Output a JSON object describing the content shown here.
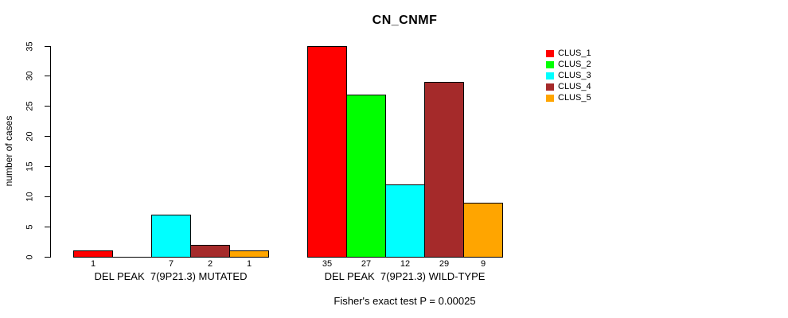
{
  "chart_data": {
    "type": "bar",
    "title": "CN_CNMF",
    "ylabel": "number of cases",
    "xlabel": "",
    "ylim": [
      0,
      35
    ],
    "yticks": [
      0,
      5,
      10,
      15,
      20,
      25,
      30,
      35
    ],
    "grid": false,
    "legend_position": "right",
    "groups": [
      {
        "label": "DEL PEAK  7(9P21.3) MUTATED",
        "values": [
          1,
          0,
          7,
          2,
          1
        ],
        "bar_labels": [
          "1",
          "",
          "7",
          "2",
          "1"
        ]
      },
      {
        "label": "DEL PEAK  7(9P21.3) WILD-TYPE",
        "values": [
          35,
          27,
          12,
          29,
          9
        ],
        "bar_labels": [
          "35",
          "27",
          "12",
          "29",
          "9"
        ]
      }
    ],
    "series_colors": [
      "#FF0000",
      "#00FF00",
      "#00FFFF",
      "#A52A2A",
      "#FFA500"
    ],
    "legend": [
      {
        "name": "CLUS_1",
        "color": "#FF0000"
      },
      {
        "name": "CLUS_2",
        "color": "#00FF00"
      },
      {
        "name": "CLUS_3",
        "color": "#00FFFF"
      },
      {
        "name": "CLUS_4",
        "color": "#A52A2A"
      },
      {
        "name": "CLUS_5",
        "color": "#FFA500"
      }
    ],
    "annotation": "Fisher's exact test P = 0.00025"
  }
}
